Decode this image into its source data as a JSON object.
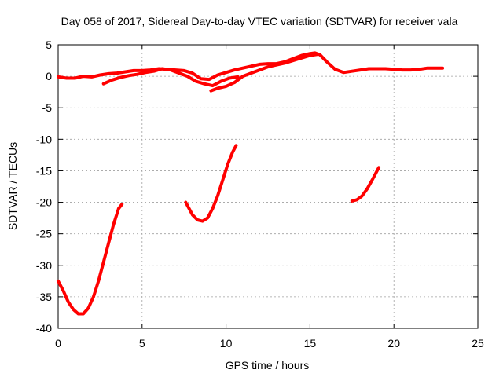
{
  "chart_data": {
    "type": "scatter",
    "title": "Day 058 of 2017, Sidereal Day-to-day VTEC variation (SDTVAR) for receiver vala",
    "xlabel": "GPS time / hours",
    "ylabel": "SDTVAR / TECUs",
    "xlim": [
      0,
      25
    ],
    "ylim": [
      -40,
      5
    ],
    "xticks": [
      0,
      5,
      10,
      15,
      20,
      25
    ],
    "yticks": [
      5,
      0,
      -5,
      -10,
      -15,
      -20,
      -25,
      -30,
      -35,
      -40
    ],
    "xtick_labels": [
      "0",
      "5",
      "10",
      "15",
      "20",
      "25"
    ],
    "ytick_labels": [
      "5",
      "0",
      "-5",
      "-10",
      "-15",
      "-20",
      "-25",
      "-30",
      "-35",
      "-40"
    ],
    "grid": true,
    "legend": "none",
    "series_color": "#ff0000",
    "series": [
      {
        "name": "track-near-zero-main",
        "x": [
          0,
          0.5,
          1,
          1.5,
          2,
          2.5,
          3,
          3.5,
          4,
          4.5,
          5,
          5.5,
          6,
          6.5,
          7,
          7.5,
          8,
          8.5,
          9,
          9.5,
          10,
          10.5,
          11,
          11.5,
          12,
          12.5,
          13,
          13.5,
          14,
          14.5,
          15,
          15.3,
          15.6,
          16,
          16.5,
          17,
          17.5,
          18,
          18.5,
          19,
          19.5,
          20,
          20.5,
          21,
          21.5,
          22,
          22.5,
          22.9
        ],
        "y": [
          -0.1,
          -0.3,
          -0.3,
          0,
          -0.1,
          0.2,
          0.4,
          0.5,
          0.7,
          0.9,
          0.9,
          1,
          1.2,
          1.1,
          1,
          0.9,
          0.5,
          -0.4,
          -0.5,
          0.2,
          0.6,
          1,
          1.3,
          1.6,
          1.9,
          2,
          2,
          2.3,
          2.8,
          3.3,
          3.6,
          3.7,
          3.4,
          2.3,
          1.1,
          0.6,
          0.8,
          1,
          1.2,
          1.2,
          1.2,
          1.1,
          1,
          1,
          1.1,
          1.3,
          1.3,
          1.3
        ]
      },
      {
        "name": "track-near-zero-dip",
        "x": [
          2.7,
          3.2,
          3.7,
          4.2,
          4.7,
          5.2,
          5.7,
          6.2,
          6.7,
          7.2,
          7.7,
          8.2,
          8.7,
          9.2,
          9.7,
          10.2,
          10.7
        ],
        "y": [
          -1.2,
          -0.6,
          -0.2,
          0.1,
          0.3,
          0.6,
          0.8,
          1.2,
          1,
          0.5,
          0,
          -0.8,
          -1.2,
          -1.5,
          -0.8,
          -0.3,
          -0.1
        ]
      },
      {
        "name": "track-rising-11-16",
        "x": [
          9.1,
          9.5,
          10,
          10.5,
          11,
          11.5,
          12,
          12.5,
          13,
          13.5,
          14,
          14.5,
          15,
          15.5
        ],
        "y": [
          -2.3,
          -1.9,
          -1.6,
          -1,
          0,
          0.5,
          1,
          1.5,
          1.8,
          2.1,
          2.5,
          2.9,
          3.3,
          3.5
        ]
      },
      {
        "name": "track-0-4h",
        "x": [
          0,
          0.3,
          0.6,
          0.9,
          1.2,
          1.5,
          1.8,
          2.1,
          2.4,
          2.7,
          3,
          3.3,
          3.6,
          3.8
        ],
        "y": [
          -32.5,
          -34,
          -35.8,
          -37,
          -37.7,
          -37.7,
          -36.8,
          -35,
          -32.5,
          -29.5,
          -26.5,
          -23.5,
          -21,
          -20.3
        ]
      },
      {
        "name": "track-7.6-10.6h",
        "x": [
          7.6,
          7.8,
          8,
          8.3,
          8.6,
          8.9,
          9.2,
          9.5,
          9.8,
          10.1,
          10.4,
          10.6
        ],
        "y": [
          -20,
          -21,
          -22,
          -22.8,
          -23,
          -22.5,
          -21,
          -19,
          -16.5,
          -14,
          -12,
          -11
        ]
      },
      {
        "name": "track-17.5-19.1h",
        "x": [
          17.5,
          17.8,
          18.1,
          18.4,
          18.7,
          19,
          19.1
        ],
        "y": [
          -19.8,
          -19.6,
          -19,
          -17.9,
          -16.5,
          -15,
          -14.5
        ]
      }
    ]
  }
}
